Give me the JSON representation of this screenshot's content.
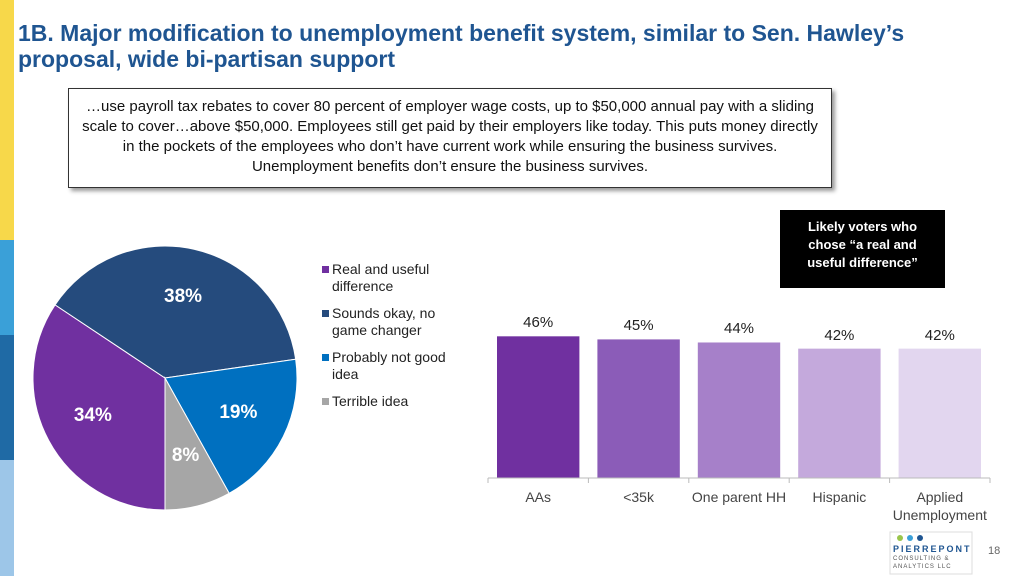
{
  "title": "1B. Major modification to unemployment benefit system, similar to Sen. Hawley’s proposal, wide bi-partisan support",
  "quote": "…use payroll tax rebates to cover 80 percent of employer wage costs, up to $50,000 annual pay with a sliding scale to cover…above $50,000. Employees still get paid by their employers like today. This puts money directly in the pockets of the employees who don’t have current work while ensuring the business survives. Unemployment benefits don’t ensure the business survives.",
  "logo": {
    "name": "PIERREPONT",
    "tagline": "CONSULTING & ANALYTICS LLC"
  },
  "page_number": "18",
  "chart_data": [
    {
      "type": "pie",
      "categories": [
        "Real and useful difference",
        "Sounds okay, no game changer",
        "Probably not good idea",
        "Terrible idea"
      ],
      "values": [
        34,
        38,
        19,
        8
      ],
      "value_labels": [
        "34%",
        "38%",
        "19%",
        "8%"
      ],
      "colors": [
        "#7030a0",
        "#254b7d",
        "#0070c0",
        "#a6a6a6"
      ],
      "legend": "right"
    },
    {
      "type": "bar",
      "note": "Likely voters who chose “a real and useful difference”",
      "categories": [
        "AAs",
        "<35k",
        "One parent HH",
        "Hispanic",
        "Applied Unemployment"
      ],
      "values": [
        46,
        45,
        44,
        42,
        42
      ],
      "value_labels": [
        "46%",
        "45%",
        "44%",
        "42%",
        "42%"
      ],
      "colors": [
        "#7030a0",
        "#8b5cb8",
        "#a680c9",
        "#c4a9dc",
        "#e2d6ef"
      ],
      "ylim": [
        0,
        50
      ]
    }
  ]
}
